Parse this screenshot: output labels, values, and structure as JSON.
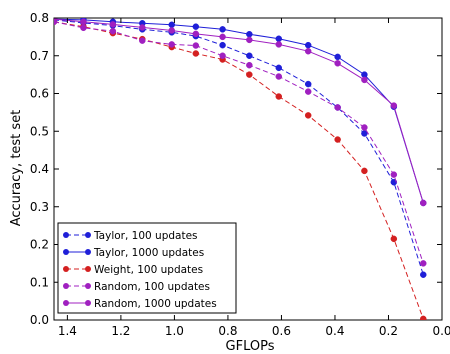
{
  "chart_data": {
    "type": "line",
    "title": "",
    "xlabel": "GFLOPs",
    "ylabel": "Accuracy, test set",
    "xlim": [
      1.45,
      0.0
    ],
    "ylim": [
      0.0,
      0.8
    ],
    "x_ticks": [
      "1.4",
      "1.2",
      "1.0",
      "0.8",
      "0.6",
      "0.4",
      "0.2",
      "0.0"
    ],
    "y_ticks": [
      "0.0",
      "0.1",
      "0.2",
      "0.3",
      "0.4",
      "0.5",
      "0.6",
      "0.7",
      "0.8"
    ],
    "grid": false,
    "legend": "bottom-left",
    "series": [
      {
        "name": "Taylor, 100 updates",
        "color": "#1f1fd8",
        "style": "dashed",
        "x": [
          1.45,
          1.34,
          1.23,
          1.12,
          1.01,
          0.92,
          0.82,
          0.72,
          0.61,
          0.5,
          0.39,
          0.29,
          0.18,
          0.07
        ],
        "y": [
          0.795,
          0.787,
          0.78,
          0.77,
          0.762,
          0.752,
          0.728,
          0.7,
          0.668,
          0.625,
          0.563,
          0.494,
          0.365,
          0.12
        ]
      },
      {
        "name": "Taylor, 1000 updates",
        "color": "#1f1fd8",
        "style": "solid",
        "x": [
          1.45,
          1.34,
          1.23,
          1.12,
          1.01,
          0.92,
          0.82,
          0.72,
          0.61,
          0.5,
          0.39,
          0.29,
          0.18,
          0.07
        ],
        "y": [
          0.797,
          0.795,
          0.79,
          0.786,
          0.782,
          0.777,
          0.77,
          0.757,
          0.745,
          0.728,
          0.697,
          0.65,
          0.565,
          0.31
        ]
      },
      {
        "name": "Weight, 100 updates",
        "color": "#d42020",
        "style": "dashed",
        "x": [
          1.45,
          1.34,
          1.23,
          1.12,
          1.01,
          0.92,
          0.82,
          0.72,
          0.61,
          0.5,
          0.39,
          0.29,
          0.18,
          0.07
        ],
        "y": [
          0.79,
          0.777,
          0.76,
          0.744,
          0.723,
          0.706,
          0.69,
          0.65,
          0.592,
          0.542,
          0.478,
          0.395,
          0.215,
          0.003
        ]
      },
      {
        "name": "Random, 100 updates",
        "color": "#a020c0",
        "style": "dashed",
        "x": [
          1.45,
          1.34,
          1.23,
          1.12,
          1.01,
          0.92,
          0.82,
          0.72,
          0.61,
          0.5,
          0.39,
          0.29,
          0.18,
          0.07
        ],
        "y": [
          0.79,
          0.774,
          0.765,
          0.74,
          0.73,
          0.727,
          0.7,
          0.675,
          0.645,
          0.605,
          0.563,
          0.51,
          0.385,
          0.15
        ]
      },
      {
        "name": "Random, 1000 updates",
        "color": "#a020c0",
        "style": "solid",
        "x": [
          1.45,
          1.34,
          1.23,
          1.12,
          1.01,
          0.92,
          0.82,
          0.72,
          0.61,
          0.5,
          0.39,
          0.29,
          0.18,
          0.07
        ],
        "y": [
          0.797,
          0.79,
          0.783,
          0.775,
          0.767,
          0.758,
          0.75,
          0.742,
          0.73,
          0.712,
          0.68,
          0.636,
          0.568,
          0.31
        ]
      }
    ]
  }
}
